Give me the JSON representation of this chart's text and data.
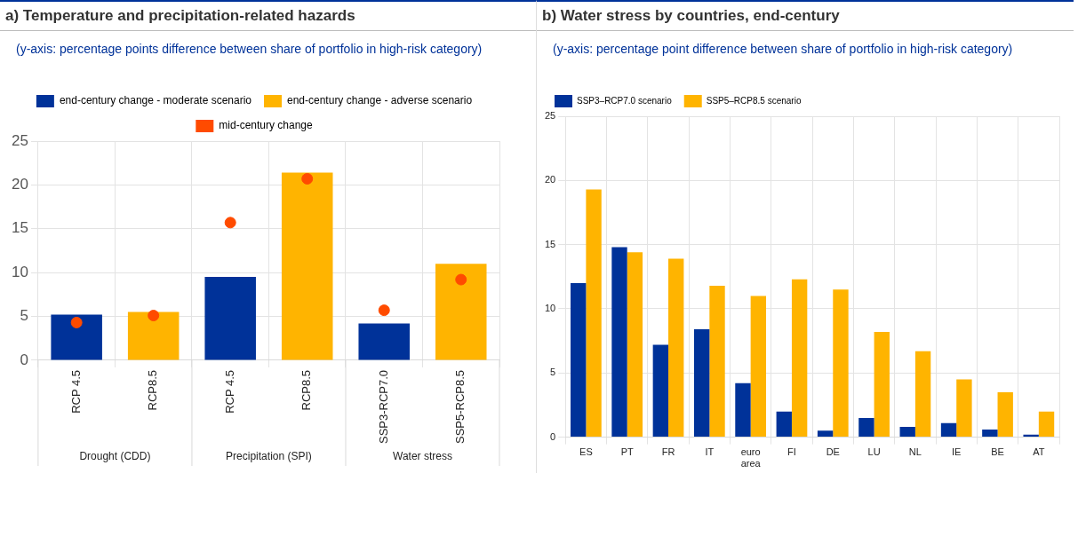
{
  "chart_data": [
    {
      "type": "bar",
      "title": "a) Temperature and precipitation-related hazards",
      "subtitle": "(y-axis: percentage points difference between share of portfolio in high-risk category)",
      "categories": [
        "RCP 4.5",
        "RCP8.5",
        "RCP 4.5",
        "RCP8.5",
        "SSP3-RCP7.0",
        "SSP5-RCP8.5"
      ],
      "series": [
        {
          "name": "end-century change - moderate scenario",
          "color": "#003299",
          "values": [
            5.2,
            null,
            9.5,
            null,
            4.2,
            null
          ]
        },
        {
          "name": "end-century change - adverse scenario",
          "color": "#ffb400",
          "values": [
            null,
            5.5,
            null,
            21.4,
            null,
            11.0
          ]
        },
        {
          "name": "mid-century change",
          "type": "scatter",
          "color": "#ff4b00",
          "values": [
            4.3,
            5.1,
            15.7,
            20.7,
            5.7,
            9.2
          ]
        }
      ],
      "annotations": [
        "Drought (CDD)",
        "Precipitation (SPI)",
        "Water stress"
      ],
      "ylim": [
        0,
        25
      ],
      "yticks": [
        0,
        5,
        10,
        15,
        20,
        25
      ],
      "grid": true,
      "legend": "top",
      "marker": "circle"
    },
    {
      "type": "bar",
      "title": "b) Water stress by countries, end-century",
      "subtitle": "(y-axis: percentage point difference between share of portfolio in high-risk category)",
      "categories": [
        "ES",
        "PT",
        "FR",
        "IT",
        "euro area",
        "FI",
        "DE",
        "LU",
        "NL",
        "IE",
        "BE",
        "AT"
      ],
      "series": [
        {
          "name": "SSP3–RCP7.0 scenario",
          "color": "#003299",
          "values": [
            12.0,
            14.8,
            7.2,
            8.4,
            4.2,
            2.0,
            0.5,
            1.5,
            0.8,
            1.1,
            0.6,
            0.2
          ]
        },
        {
          "name": "SSP5–RCP8.5 scenario",
          "color": "#ffb400",
          "values": [
            19.3,
            14.4,
            13.9,
            11.8,
            11.0,
            12.3,
            11.5,
            8.2,
            6.7,
            4.5,
            3.5,
            2.0
          ]
        }
      ],
      "ylim": [
        0,
        25
      ],
      "yticks": [
        0,
        5,
        10,
        15,
        20,
        25
      ],
      "grid": true,
      "legend": "top left"
    }
  ]
}
